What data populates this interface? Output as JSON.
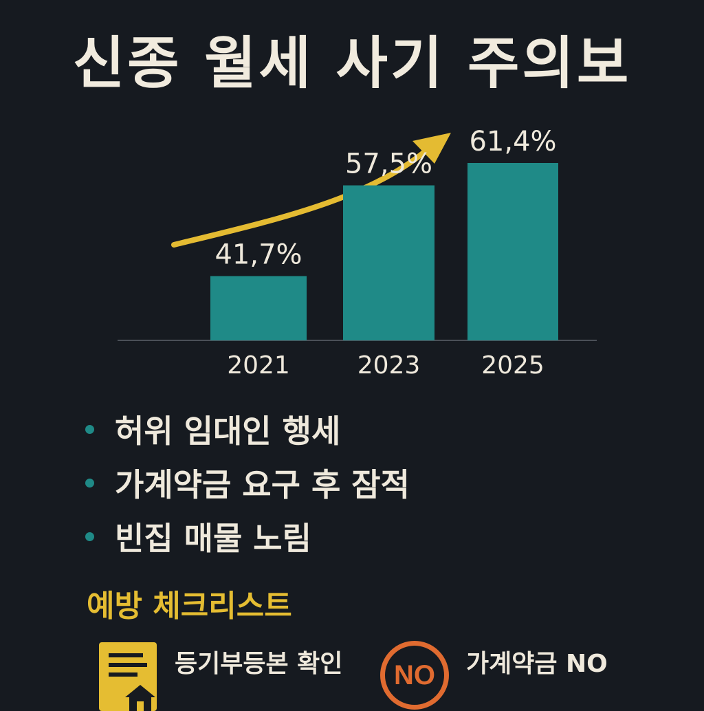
{
  "title": "신종 월세 사기 주의보",
  "chart_data": {
    "type": "bar",
    "categories": [
      "2021",
      "2023",
      "2025"
    ],
    "values": [
      41.7,
      57.5,
      61.4
    ],
    "value_labels": [
      "41,7%",
      "57,5%",
      "61,4%"
    ],
    "title": "",
    "xlabel": "",
    "ylabel": "",
    "legend": "none",
    "grid": false,
    "trend_arrow": true,
    "colors": {
      "bar": "#1f8a87",
      "arrow": "#e4bb32",
      "axis": "#4a4f57",
      "label": "#efe9dc"
    }
  },
  "bullets": [
    {
      "text": "허위 임대인 행세"
    },
    {
      "text": "가계약금 요구 후 잠적"
    },
    {
      "text": "빈집 매물 노림"
    }
  ],
  "checklist": {
    "title": "예방 체크리스트",
    "items": [
      {
        "icon": "document-house-icon",
        "text": "등기부등본 확인"
      },
      {
        "icon": "no-badge-icon",
        "badge": "NO",
        "text": "가계약금 NO"
      }
    ]
  },
  "colors": {
    "background": "#161a20",
    "teal": "#1f8a87",
    "yellow": "#e5bd32",
    "orange": "#e06b30",
    "text": "#efe9dc"
  }
}
